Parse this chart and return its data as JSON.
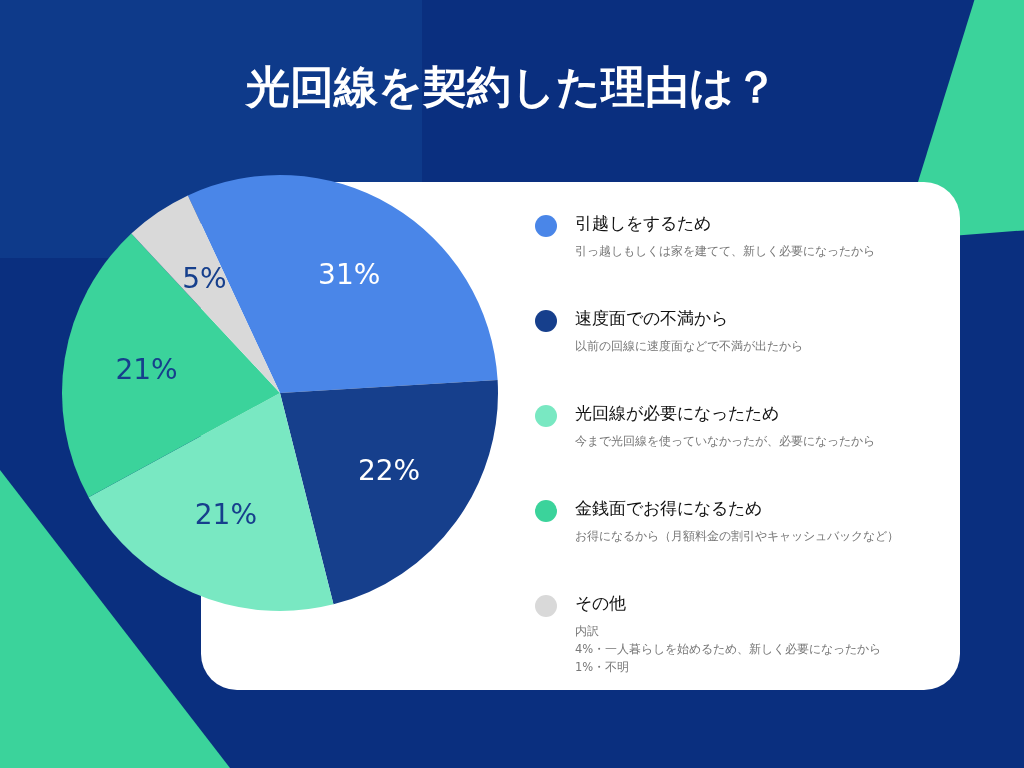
{
  "chart_data": {
    "type": "pie",
    "title": "光回線を契約した理由は？",
    "categories": [
      "引越しをするため",
      "速度面での不満から",
      "光回線が必要になったため",
      "金銭面でお得になるため",
      "その他"
    ],
    "values": [
      31,
      22,
      21,
      21,
      5
    ],
    "colors": [
      "#4a86e8",
      "#163f8c",
      "#79e8c2",
      "#3bd39b",
      "#d9d9d9"
    ],
    "value_labels": [
      "31%",
      "22%",
      "21%",
      "21%",
      "5%"
    ],
    "legend": "right",
    "annotations": [
      "引っ越しもしくは家を建てて、新しく必要になったから",
      "以前の回線に速度面などで不満が出たから",
      "今まで光回線を使っていなかったが、必要になったから",
      "お得になるから（月額料金の割引やキャッシュバックなど）",
      "内訳\n4%・一人暮らしを始めるため、新しく必要になったから\n1%・不明"
    ]
  }
}
